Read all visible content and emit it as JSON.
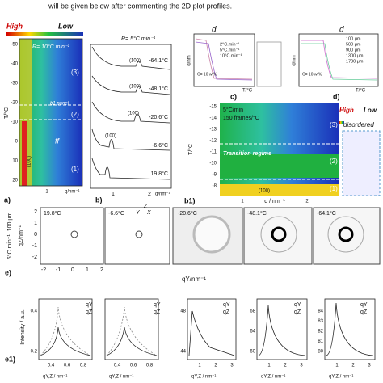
{
  "caption_line": "will be given below after commenting the 2D plot profiles.",
  "panel_a": {
    "label": "a)",
    "high": "High",
    "low": "Low",
    "rate": "R= 10°C.min⁻¹",
    "y_label": "T/°C",
    "y_ticks": [
      -50,
      -40,
      -30,
      -20,
      -10,
      0,
      10,
      20
    ],
    "regimes": [
      "(3)",
      "(2)",
      "(1)"
    ],
    "b1_marker": "b1 panel",
    "peak": "(100)",
    "ff": "ff",
    "x_label": "q/nm⁻¹",
    "x_tick": 1
  },
  "panel_b": {
    "label": "b)",
    "rate": "R= 5°C.min⁻¹",
    "peaks": [
      "(100)",
      "(100)",
      "(100)",
      "(100)"
    ],
    "temperatures": [
      "-64.1°C",
      "-48.1°C",
      "-20.6°C",
      "-6.6°C",
      "19.8°C"
    ],
    "x_ticks": [
      1,
      2
    ],
    "x_label": "q/nm⁻¹"
  },
  "panel_c": {
    "label": "c)",
    "symbol": "d",
    "legend": [
      "2°C.min⁻¹",
      "5°C.min⁻¹",
      "10°C.min⁻¹"
    ],
    "y_label": "d/nm",
    "x_label": "T/°C",
    "note": "C= 10 wt%"
  },
  "panel_d": {
    "label": "d)",
    "symbol": "d",
    "legend": [
      "100 μm",
      "500 μm",
      "900 μm",
      "1300 μm",
      "1700 μm"
    ],
    "y_label": "d/nm",
    "x_label": "T/°C",
    "note": "C= 10 wt%"
  },
  "panel_b1": {
    "label": "b1)",
    "rate": "5°C/min",
    "frames": "150 frames/°C",
    "high": "High",
    "low": "Low",
    "disordered": "disordered",
    "y_label": "T/°C",
    "y_ticks": [
      -15,
      -14,
      -13,
      -12,
      -11,
      -10,
      -9,
      -8
    ],
    "regimes": [
      "(3)",
      "(2)",
      "(1)"
    ],
    "transition": "Transition regime",
    "peak": "(100)",
    "x_label": "q / nm⁻¹",
    "x_ticks": [
      1,
      2
    ]
  },
  "panel_e": {
    "label": "e)",
    "condition": "5°C.min⁻¹, 100 μm",
    "y_label": "qZ/nm⁻¹",
    "x_label": "qY/nm⁻¹",
    "temperatures": [
      "19.8°C",
      "-6.6°C",
      "-20.6°C",
      "-48.1°C",
      "-64.1°C"
    ],
    "axes": [
      "Z",
      "Y",
      "X"
    ],
    "y_ticks": [
      2,
      1,
      0,
      -1,
      -2
    ],
    "x_ticks": [
      -2,
      -1,
      0,
      1,
      2
    ]
  },
  "panel_e1": {
    "label": "e1)",
    "legend": [
      "qY",
      "qZ"
    ],
    "y_label": "Intensity / a.u.",
    "x_label": "qY,Z / nm⁻¹",
    "plots": [
      {
        "y_ticks": [
          0.4,
          0.2
        ],
        "x_ticks": [
          0.4,
          0.6,
          0.8
        ]
      },
      {
        "y_ticks": [],
        "x_ticks": [
          0.4,
          0.6,
          0.8
        ]
      },
      {
        "y_ticks": [
          48,
          44
        ],
        "x_ticks": [
          1,
          2,
          3
        ]
      },
      {
        "y_ticks": [
          68,
          64,
          60
        ],
        "x_ticks": [
          1,
          2,
          3
        ]
      },
      {
        "y_ticks": [
          84,
          83,
          82,
          81,
          80
        ],
        "x_ticks": [
          1,
          2,
          3
        ]
      }
    ]
  }
}
